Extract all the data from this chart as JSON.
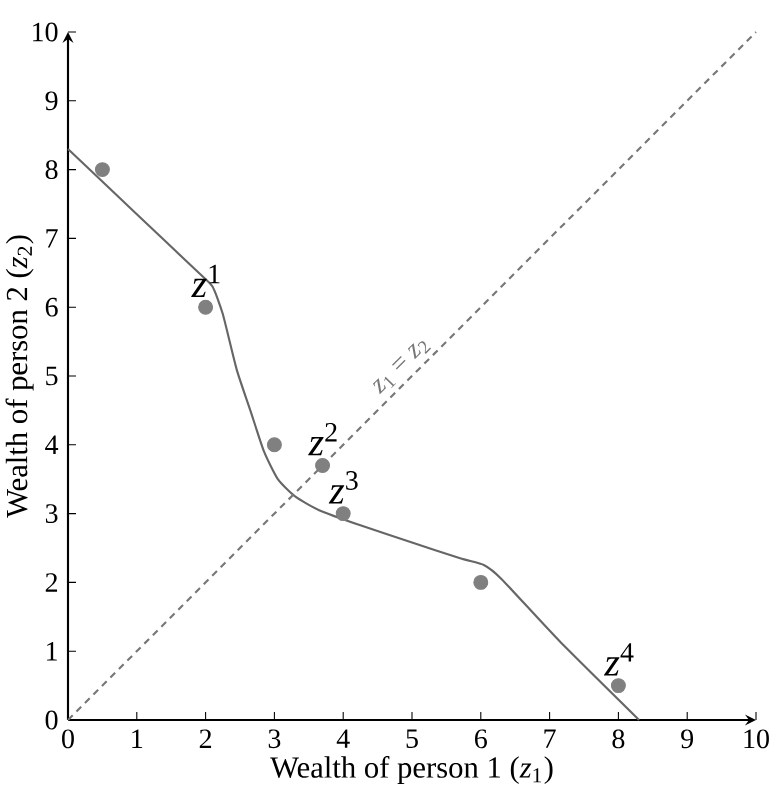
{
  "chart_data": {
    "type": "scatter",
    "xlabel": "Wealth of person 1 (*z*$_{1}$)",
    "ylabel": "Wealth of person 2 (*z*$_{2}$)",
    "xlim": [
      0,
      10
    ],
    "ylim": [
      0,
      10
    ],
    "xticks": [
      0,
      1,
      2,
      3,
      4,
      5,
      6,
      7,
      8,
      9,
      10
    ],
    "yticks": [
      0,
      1,
      2,
      3,
      4,
      5,
      6,
      7,
      8,
      9,
      10
    ],
    "grid": false,
    "series": [
      {
        "marker": "circle",
        "color": "#808080",
        "x": [
          0.5,
          2,
          3,
          3.7,
          4,
          6,
          8
        ],
        "values": [
          8,
          6,
          4,
          3.7,
          3,
          2,
          0.5
        ]
      },
      {
        "type": "line",
        "marker": "none",
        "line_style": "solid",
        "color": "#666666",
        "x": [
          0,
          1,
          1.9,
          2.1,
          2.25,
          2.45,
          2.65,
          2.85,
          3.05,
          3.3,
          3.65,
          4.25,
          5,
          5.7,
          6.05,
          6.3,
          7.15,
          8.3
        ],
        "values": [
          8.3,
          7.35,
          6.5,
          6.3,
          5.9,
          5.1,
          4.5,
          3.9,
          3.5,
          3.25,
          3.05,
          2.83,
          2.58,
          2.35,
          2.25,
          2.05,
          1.14,
          0
        ]
      },
      {
        "type": "line",
        "marker": "none",
        "line_style": "dashed",
        "name": "*z*$_{1}$ = *z*$_{2}$",
        "color": "#777777",
        "x": [
          0,
          10
        ],
        "values": [
          0,
          10
        ]
      }
    ],
    "annotations": [
      {
        "text": "*z*$^{1}$",
        "x": 2,
        "y": 6
      },
      {
        "text": "*z*$^{2}$",
        "x": 3.7,
        "y": 3.7
      },
      {
        "text": "*z*$^{3}$",
        "x": 4,
        "y": 3
      },
      {
        "text": "*z*$^{4}$",
        "x": 8,
        "y": 0.5
      }
    ]
  }
}
